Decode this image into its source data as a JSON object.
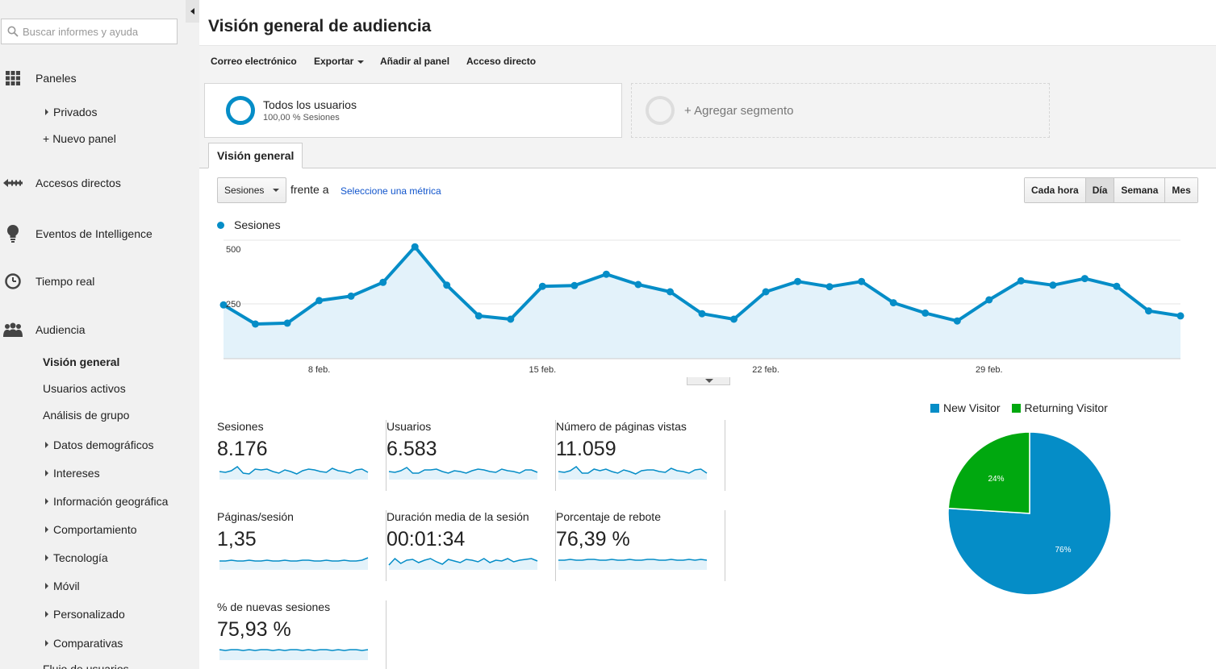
{
  "sidebar": {
    "search_placeholder": "Buscar informes y ayuda",
    "sections": {
      "dashboards": "Paneles",
      "private": "Privados",
      "new_dashboard": "Nuevo panel",
      "shortcuts": "Accesos directos",
      "intelligence": "Eventos de Intelligence",
      "realtime": "Tiempo real",
      "audience": "Audiencia",
      "overview": "Visión general",
      "active_users": "Usuarios activos",
      "cohort": "Análisis de grupo",
      "demographics": "Datos demográficos",
      "interests": "Intereses",
      "geo": "Información geográfica",
      "behavior": "Comportamiento",
      "technology": "Tecnología",
      "mobile": "Móvil",
      "custom": "Personalizado",
      "benchmarking": "Comparativas",
      "users_flow": "Flujo de usuarios"
    }
  },
  "header": {
    "title": "Visión general de audiencia",
    "actions": {
      "email": "Correo electrónico",
      "export": "Exportar",
      "add_dashboard": "Añadir al panel",
      "shortcut": "Acceso directo"
    }
  },
  "segments": {
    "all_users_title": "Todos los usuarios",
    "all_users_sub": "100,00 % Sesiones",
    "add_segment": "+ Agregar segmento"
  },
  "tabs": {
    "overview": "Visión general"
  },
  "controls": {
    "metric": "Sesiones",
    "vs": "frente a",
    "pick_metric": "Seleccione una métrica",
    "granularity": [
      "Cada hora",
      "Día",
      "Semana",
      "Mes"
    ],
    "selected_granularity": "Día"
  },
  "chart_data": [
    {
      "type": "area",
      "series": [
        {
          "name": "Sesiones",
          "values": [
            245,
            158,
            162,
            265,
            285,
            348,
            510,
            335,
            195,
            180,
            330,
            333,
            385,
            338,
            305,
            205,
            180,
            305,
            352,
            328,
            352,
            255,
            208,
            172,
            268,
            355,
            335,
            365,
            330,
            218,
            195
          ]
        }
      ],
      "x_tick_labels": [
        "8 feb.",
        "15 feb.",
        "22 feb.",
        "29 feb."
      ],
      "x_tick_indices": [
        3,
        10,
        17,
        24
      ],
      "y_tick_labels": [
        "500",
        "250"
      ],
      "y_tick_values": [
        500,
        250
      ],
      "ylim": [
        0,
        540
      ],
      "legend": "top-left",
      "color": "#058dc7",
      "fill": "#e3f2fa"
    },
    {
      "type": "pie",
      "categories": [
        "New Visitor",
        "Returning Visitor"
      ],
      "values": [
        76,
        24
      ],
      "labels": [
        "76%",
        "24%"
      ],
      "colors": [
        "#058dc7",
        "#00a80f"
      ],
      "legend": "top"
    }
  ],
  "metrics": [
    {
      "label": "Sesiones",
      "value": "8.176",
      "spark": [
        10,
        9,
        11,
        16,
        8,
        7,
        13,
        12,
        13,
        10,
        8,
        12,
        10,
        7,
        11,
        13,
        12,
        10,
        9,
        14,
        11,
        10,
        8,
        12,
        13,
        9
      ]
    },
    {
      "label": "Usuarios",
      "value": "6.583",
      "spark": [
        10,
        9,
        11,
        15,
        8,
        8,
        12,
        12,
        13,
        10,
        8,
        11,
        10,
        8,
        11,
        13,
        12,
        10,
        9,
        13,
        11,
        10,
        8,
        12,
        12,
        9
      ]
    },
    {
      "label": "Número de páginas vistas",
      "value": "11.059",
      "spark": [
        10,
        9,
        11,
        16,
        8,
        8,
        13,
        11,
        13,
        10,
        8,
        12,
        10,
        7,
        11,
        12,
        12,
        10,
        9,
        14,
        11,
        10,
        8,
        12,
        13,
        8
      ]
    },
    {
      "label": "Páginas/sesión",
      "value": "1,35",
      "spark": [
        11,
        11,
        12,
        11,
        11,
        12,
        11,
        11,
        12,
        11,
        11,
        12,
        11,
        11,
        12,
        12,
        11,
        11,
        12,
        11,
        11,
        12,
        11,
        11,
        12,
        15
      ]
    },
    {
      "label": "Duración media de la sesión",
      "value": "00:01:34",
      "spark": [
        6,
        14,
        8,
        12,
        13,
        9,
        12,
        14,
        10,
        7,
        13,
        11,
        9,
        13,
        12,
        10,
        14,
        9,
        12,
        11,
        14,
        10,
        12,
        13,
        14,
        11
      ]
    },
    {
      "label": "Porcentaje de rebote",
      "value": "76,39 %",
      "spark": [
        12,
        12,
        13,
        12,
        12,
        13,
        13,
        12,
        12,
        13,
        12,
        12,
        13,
        12,
        12,
        13,
        13,
        12,
        12,
        13,
        12,
        12,
        13,
        12,
        13,
        12
      ]
    },
    {
      "label": "% de nuevas sesiones",
      "value": "75,93 %",
      "spark": [
        13,
        12,
        13,
        13,
        12,
        13,
        12,
        13,
        13,
        12,
        13,
        12,
        13,
        13,
        12,
        13,
        12,
        13,
        13,
        12,
        13,
        12,
        13,
        13,
        12,
        13
      ]
    }
  ]
}
